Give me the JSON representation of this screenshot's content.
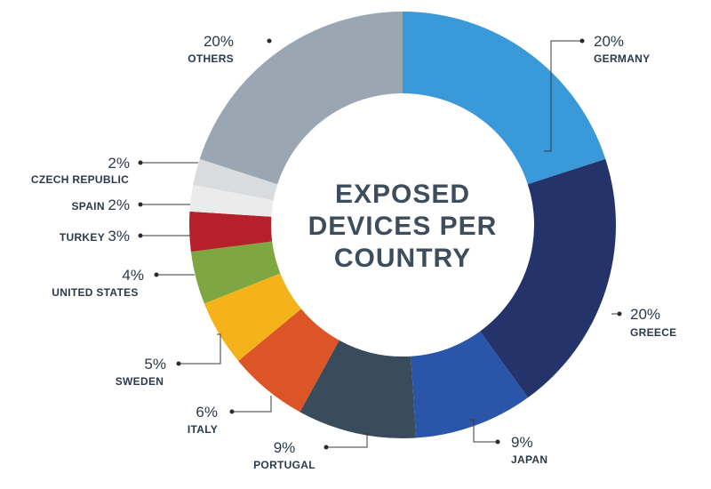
{
  "chart_data": {
    "type": "pie",
    "title_lines": [
      "EXPOSED",
      "DEVICES PER",
      "COUNTRY"
    ],
    "slices": [
      {
        "label": "GERMANY",
        "value": 20,
        "pct_text": "20%",
        "color": "#3a9ad9"
      },
      {
        "label": "GREECE",
        "value": 20,
        "pct_text": "20%",
        "color": "#24346b"
      },
      {
        "label": "JAPAN",
        "value": 9,
        "pct_text": "9%",
        "color": "#2956a8"
      },
      {
        "label": "PORTUGAL",
        "value": 9,
        "pct_text": "9%",
        "color": "#3a4b5c"
      },
      {
        "label": "ITALY",
        "value": 6,
        "pct_text": "6%",
        "color": "#dc5527"
      },
      {
        "label": "SWEDEN",
        "value": 5,
        "pct_text": "5%",
        "color": "#f4b21b"
      },
      {
        "label": "UNITED STATES",
        "value": 4,
        "pct_text": "4%",
        "color": "#7ea641"
      },
      {
        "label": "TURKEY",
        "value": 3,
        "pct_text": "3%",
        "color": "#b5202a"
      },
      {
        "label": "SPAIN",
        "value": 2,
        "pct_text": "2%",
        "color": "#ebebeb"
      },
      {
        "label": "CZECH REPUBLIC",
        "value": 2,
        "pct_text": "2%",
        "color": "#d9dcdf"
      },
      {
        "label": "OTHERS",
        "value": 20,
        "pct_text": "20%",
        "color": "#9aa7b2"
      }
    ]
  }
}
